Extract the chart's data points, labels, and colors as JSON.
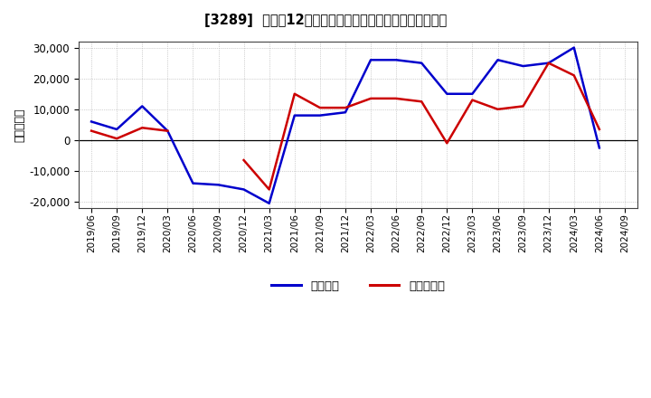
{
  "title": "[3289]  利益だ12か月移動合計の対前年同期増減額の推移",
  "ylabel": "（百万円）",
  "x_labels": [
    "2019/06",
    "2019/09",
    "2019/12",
    "2020/03",
    "2020/06",
    "2020/09",
    "2020/12",
    "2021/03",
    "2021/06",
    "2021/09",
    "2021/12",
    "2022/03",
    "2022/06",
    "2022/09",
    "2022/12",
    "2023/03",
    "2023/06",
    "2023/09",
    "2023/12",
    "2024/03",
    "2024/06",
    "2024/09"
  ],
  "keijo_rieki": [
    6000,
    3500,
    11000,
    3000,
    -14000,
    -14500,
    -16000,
    -20500,
    8000,
    8000,
    9000,
    26000,
    26000,
    25000,
    15000,
    15000,
    26000,
    24000,
    25000,
    30000,
    -2500,
    null
  ],
  "touki_junrieki": [
    3000,
    500,
    4000,
    3000,
    null,
    null,
    -6500,
    -16000,
    15000,
    10500,
    10500,
    13500,
    13500,
    12500,
    -1000,
    13000,
    10000,
    11000,
    25000,
    21000,
    3500,
    null
  ],
  "keijo_color": "#0000cc",
  "touki_color": "#cc0000",
  "ylim": [
    -22000,
    32000
  ],
  "yticks": [
    -20000,
    -10000,
    0,
    10000,
    20000,
    30000
  ],
  "background_color": "#ffffff",
  "plot_bg_color": "#ffffff",
  "grid_color": "#aaaaaa",
  "legend_label_keijo": "経常利益",
  "legend_label_touki": "当期純利益"
}
